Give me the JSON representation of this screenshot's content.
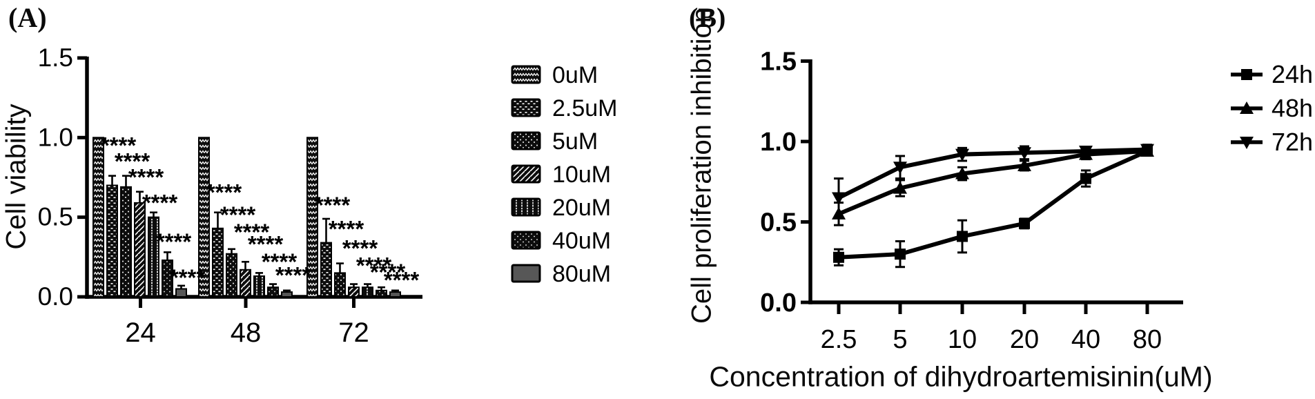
{
  "figure": {
    "background": "#ffffff",
    "ink": "#000000"
  },
  "panel_a": {
    "label": "(A)",
    "y_axis_label": "Cell viability",
    "y_tick_labels": [
      "1.5",
      "1.0",
      "0.5",
      "0.0"
    ],
    "x_tick_labels": [
      "24",
      "48",
      "72"
    ],
    "significance_label": "****",
    "legend_labels": [
      "0uM",
      "2.5uM",
      "5uM",
      "10uM",
      "20uM",
      "40uM",
      "80uM"
    ]
  },
  "panel_b": {
    "label": "(B)",
    "y_axis_label": "Cell proliferation inhibition",
    "x_axis_label": "Concentration of dihydroartemisinin(uM)",
    "y_tick_labels": [
      "1.5",
      "1.0",
      "0.5",
      "0.0"
    ],
    "x_tick_labels": [
      "2.5",
      "5",
      "10",
      "20",
      "40",
      "80"
    ],
    "legend_labels": [
      "24h",
      "48h",
      "72h"
    ]
  },
  "chart_data": [
    {
      "type": "bar",
      "panel": "A",
      "title": "",
      "xlabel": "",
      "ylabel": "Cell viability",
      "ylim": [
        0,
        1.5
      ],
      "y_ticks": [
        1.5,
        1.0,
        0.5,
        0.0
      ],
      "categories": [
        "24",
        "48",
        "72"
      ],
      "series": [
        {
          "name": "0uM",
          "fill_pattern": "zigzag",
          "values": [
            1.0,
            1.0,
            1.0
          ],
          "errors": [
            0,
            0,
            0
          ]
        },
        {
          "name": "2.5uM",
          "fill_pattern": "horizontal-dash",
          "values": [
            0.7,
            0.43,
            0.34
          ],
          "errors": [
            0.06,
            0.1,
            0.15
          ]
        },
        {
          "name": "5uM",
          "fill_pattern": "dots",
          "values": [
            0.69,
            0.27,
            0.15
          ],
          "errors": [
            0.07,
            0.03,
            0.06
          ]
        },
        {
          "name": "10uM",
          "fill_pattern": "diagonal-stripe",
          "values": [
            0.59,
            0.17,
            0.06
          ],
          "errors": [
            0.07,
            0.05,
            0.02
          ]
        },
        {
          "name": "20uM",
          "fill_pattern": "vertical-dash",
          "values": [
            0.5,
            0.13,
            0.06
          ],
          "errors": [
            0.03,
            0.02,
            0.02
          ]
        },
        {
          "name": "40uM",
          "fill_pattern": "sparse-dots",
          "values": [
            0.23,
            0.06,
            0.04
          ],
          "errors": [
            0.05,
            0.02,
            0.02
          ]
        },
        {
          "name": "80uM",
          "fill_pattern": "gray-solid",
          "values": [
            0.05,
            0.03,
            0.03
          ],
          "errors": [
            0.02,
            0.01,
            0.01
          ]
        }
      ],
      "significance": "**** shown above every dihydroartemisinin-treated bar",
      "legend_position": "right"
    },
    {
      "type": "line",
      "panel": "B",
      "title": "",
      "xlabel": "Concentration of dihydroartemisinin(uM)",
      "ylabel": "Cell proliferation inhibition",
      "ylim": [
        0,
        1.5
      ],
      "y_ticks": [
        1.5,
        1.0,
        0.5,
        0.0
      ],
      "x_categories": [
        "2.5",
        "5",
        "10",
        "20",
        "40",
        "80"
      ],
      "series": [
        {
          "name": "24h",
          "marker": "square",
          "values": [
            0.28,
            0.3,
            0.41,
            0.49,
            0.77,
            0.94
          ],
          "errors": [
            0.05,
            0.08,
            0.1,
            0.03,
            0.05,
            0.02
          ]
        },
        {
          "name": "48h",
          "marker": "triangle-up",
          "values": [
            0.55,
            0.71,
            0.8,
            0.85,
            0.92,
            0.94
          ],
          "errors": [
            0.07,
            0.05,
            0.04,
            0.03,
            0.03,
            0.02
          ]
        },
        {
          "name": "72h",
          "marker": "triangle-down",
          "values": [
            0.65,
            0.84,
            0.92,
            0.93,
            0.94,
            0.95
          ],
          "errors": [
            0.12,
            0.07,
            0.04,
            0.04,
            0.02,
            0.03
          ]
        }
      ],
      "legend_position": "right"
    }
  ]
}
